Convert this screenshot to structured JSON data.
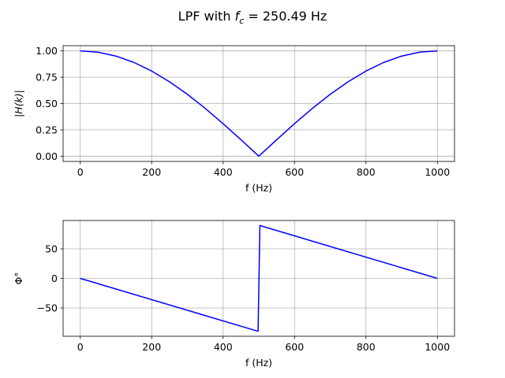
{
  "figure": {
    "title_prefix": "LPF with ",
    "title_var": "f",
    "title_sub": "c",
    "title_suffix": " = 250.49 Hz"
  },
  "colors": {
    "line": "#0000ff",
    "grid": "#b0b0b0",
    "axes": "#000000",
    "background": "#ffffff"
  },
  "chart_data": [
    {
      "type": "line",
      "subplot": "top",
      "title": "",
      "xlabel": "f (Hz)",
      "ylabel": "|H(k)|",
      "xlim": [
        -48,
        1048
      ],
      "ylim": [
        -0.05,
        1.05
      ],
      "grid": true,
      "xticks": [
        0,
        200,
        400,
        600,
        800,
        1000
      ],
      "yticks": [
        0.0,
        0.25,
        0.5,
        0.75,
        1.0
      ],
      "xtick_labels": [
        "0",
        "200",
        "400",
        "600",
        "800",
        "1000"
      ],
      "ytick_labels": [
        "0.00",
        "0.25",
        "0.50",
        "0.75",
        "1.00"
      ],
      "series": [
        {
          "color": "#0000ff",
          "x": [
            0,
            50,
            100,
            150,
            200,
            250,
            300,
            350,
            400,
            450,
            500,
            550,
            600,
            650,
            700,
            750,
            800,
            850,
            900,
            950,
            1000
          ],
          "y": [
            1.0,
            0.988,
            0.951,
            0.891,
            0.809,
            0.707,
            0.588,
            0.454,
            0.309,
            0.156,
            0.0,
            0.156,
            0.309,
            0.454,
            0.588,
            0.707,
            0.809,
            0.891,
            0.951,
            0.988,
            1.0
          ]
        }
      ]
    },
    {
      "type": "line",
      "subplot": "bottom",
      "title": "",
      "xlabel": "f (Hz)",
      "ylabel": "Φ°",
      "xlim": [
        -48,
        1048
      ],
      "ylim": [
        -98,
        98
      ],
      "grid": true,
      "xticks": [
        0,
        200,
        400,
        600,
        800,
        1000
      ],
      "yticks": [
        -50,
        0,
        50
      ],
      "xtick_labels": [
        "0",
        "200",
        "400",
        "600",
        "800",
        "1000"
      ],
      "ytick_labels": [
        "−50",
        "0",
        "50"
      ],
      "series": [
        {
          "color": "#0000ff",
          "x": [
            0,
            498,
            503,
            1000
          ],
          "y": [
            0,
            -89.6,
            89.5,
            0
          ]
        }
      ]
    }
  ]
}
